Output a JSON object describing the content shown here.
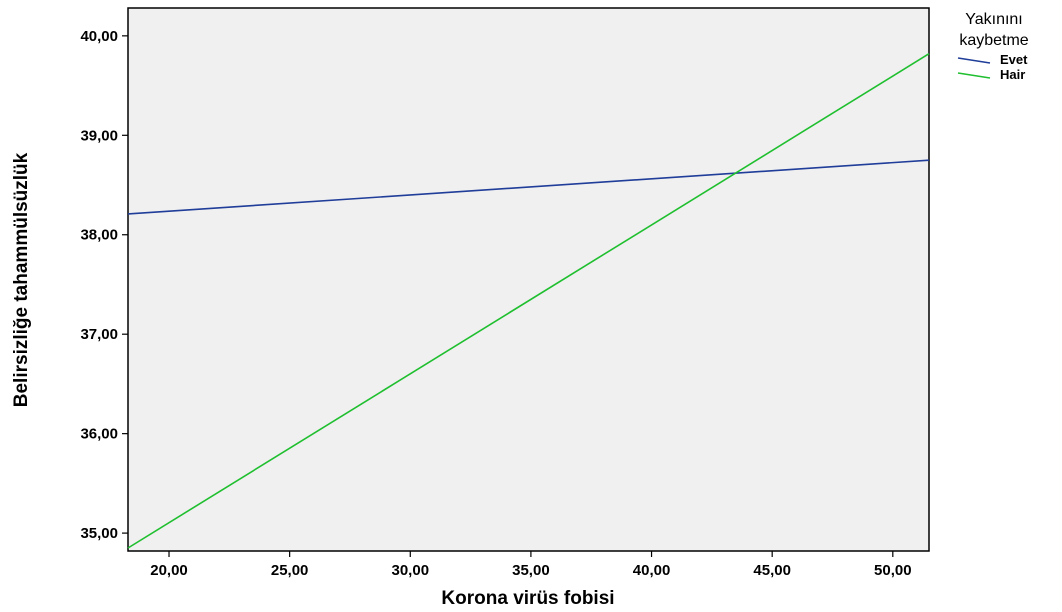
{
  "chart_data": {
    "type": "line",
    "title": "",
    "xlabel": "Korona virüs fobisi",
    "ylabel": "Belirsizliğe tahammülsüzlük",
    "xlim": [
      18.3,
      51.5
    ],
    "ylim": [
      34.82,
      40.28
    ],
    "x_ticks": [
      20,
      25,
      30,
      35,
      40,
      45,
      50
    ],
    "x_tick_labels": [
      "20,00",
      "25,00",
      "30,00",
      "35,00",
      "40,00",
      "45,00",
      "50,00"
    ],
    "y_ticks": [
      35,
      36,
      37,
      38,
      39,
      40
    ],
    "y_tick_labels": [
      "35,00",
      "36,00",
      "37,00",
      "38,00",
      "39,00",
      "40,00"
    ],
    "grid": false,
    "legend": {
      "title_lines": [
        "Yakınını",
        "kaybetme"
      ],
      "placement": "top-right outside"
    },
    "plot_background": "#f0f0f0",
    "series": [
      {
        "name": "Evet",
        "color": "#1f3d99",
        "x": [
          18.3,
          51.5
        ],
        "y": [
          38.21,
          38.75
        ]
      },
      {
        "name": "Hair",
        "color": "#1fbf2f",
        "x": [
          18.3,
          51.5
        ],
        "y": [
          34.85,
          39.82
        ]
      }
    ]
  }
}
